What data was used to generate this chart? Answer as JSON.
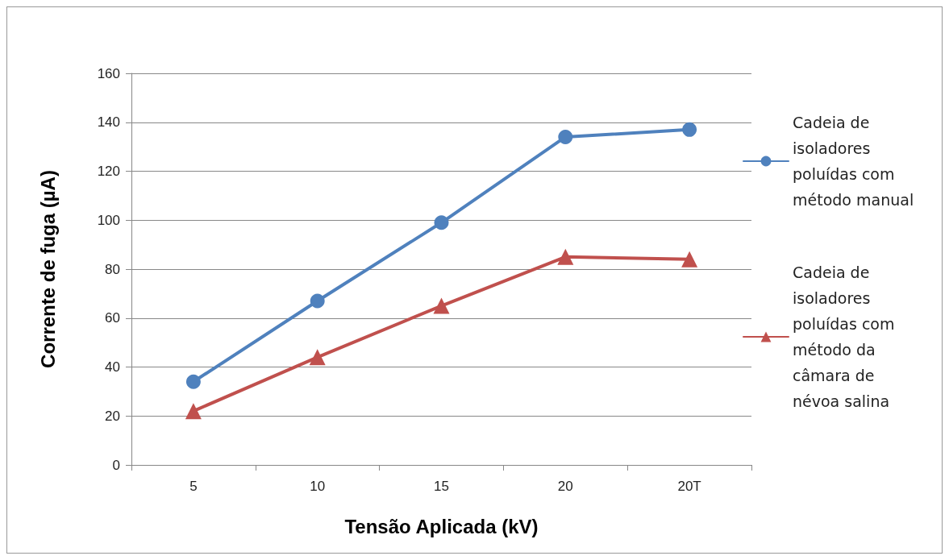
{
  "chart_data": {
    "type": "line",
    "xlabel": "Tensão Aplicada (kV)",
    "ylabel": "Corrente de fuga (µA)",
    "categories": [
      "5",
      "10",
      "15",
      "20",
      "20T"
    ],
    "series": [
      {
        "name": "Cadeia de isoladores poluídas com método manual",
        "color": "#4f81bd",
        "marker": "circle",
        "values": [
          34,
          67,
          99,
          134,
          137
        ]
      },
      {
        "name": "Cadeia de isoladores poluídas com método da câmara de névoa salina",
        "color": "#c0504d",
        "marker": "triangle",
        "values": [
          22,
          44,
          65,
          85,
          84
        ]
      }
    ],
    "ylim": [
      0,
      160
    ],
    "yticks": [
      0,
      20,
      40,
      60,
      80,
      100,
      120,
      140,
      160
    ],
    "grid": "y",
    "legend": "right",
    "line_style": "solid"
  }
}
